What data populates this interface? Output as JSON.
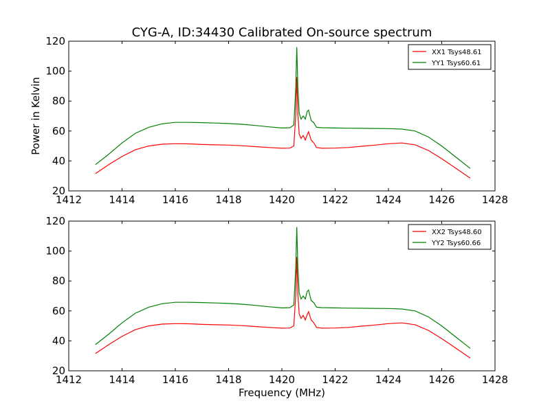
{
  "page_title": "CYG-A, ID:34430 Calibrated On-source spectrum",
  "xlabel": "Frequency (MHz)",
  "ylabel": "Power in Kelvin",
  "colors": {
    "XX": "#ff0000",
    "YY": "#008000",
    "axis": "#000000",
    "background": "#ffffff"
  },
  "chart_data": [
    {
      "type": "line",
      "title": "CYG-A, ID:34430 Calibrated On-source spectrum",
      "xlabel": "",
      "ylabel": "Power in Kelvin",
      "xlim": [
        1412,
        1428
      ],
      "ylim": [
        20,
        120
      ],
      "xticks": [
        1412,
        1414,
        1416,
        1418,
        1420,
        1422,
        1424,
        1426,
        1428
      ],
      "yticks": [
        20,
        40,
        60,
        80,
        100,
        120
      ],
      "grid": false,
      "legend_position": "top-right",
      "series": [
        {
          "name": "XX1 Tsys48.61",
          "color": "#ff0000",
          "x": [
            1413.0,
            1413.5,
            1414.0,
            1414.5,
            1415.0,
            1415.5,
            1416.0,
            1416.5,
            1417.0,
            1417.5,
            1418.0,
            1418.5,
            1419.0,
            1419.5,
            1420.0,
            1420.3,
            1420.45,
            1420.52,
            1420.56,
            1420.6,
            1420.65,
            1420.72,
            1420.8,
            1420.88,
            1420.95,
            1421.0,
            1421.1,
            1421.2,
            1421.3,
            1421.5,
            1422.0,
            1422.5,
            1423.0,
            1423.5,
            1424.0,
            1424.5,
            1425.0,
            1425.5,
            1426.0,
            1426.5,
            1427.07
          ],
          "values": [
            31.5,
            37.5,
            43.0,
            47.5,
            50.0,
            51.2,
            51.5,
            51.4,
            51.0,
            50.8,
            50.6,
            50.2,
            49.6,
            49.0,
            48.5,
            48.6,
            50.0,
            70.0,
            96.0,
            72.0,
            58.0,
            55.0,
            57.0,
            54.0,
            57.5,
            59.5,
            54.0,
            52.0,
            49.0,
            48.5,
            48.6,
            49.0,
            49.8,
            50.6,
            51.5,
            52.0,
            50.8,
            47.0,
            41.5,
            35.5,
            28.5
          ]
        },
        {
          "name": "YY1 Tsys60.61",
          "color": "#008000",
          "x": [
            1413.0,
            1413.5,
            1414.0,
            1414.5,
            1415.0,
            1415.5,
            1416.0,
            1416.5,
            1417.0,
            1417.5,
            1418.0,
            1418.5,
            1419.0,
            1419.5,
            1420.0,
            1420.3,
            1420.45,
            1420.52,
            1420.56,
            1420.6,
            1420.65,
            1420.72,
            1420.8,
            1420.88,
            1420.95,
            1421.0,
            1421.1,
            1421.2,
            1421.3,
            1421.5,
            1422.0,
            1422.5,
            1423.0,
            1423.5,
            1424.0,
            1424.5,
            1425.0,
            1425.5,
            1426.0,
            1426.5,
            1427.07
          ],
          "values": [
            37.5,
            44.5,
            52.0,
            58.5,
            62.5,
            64.8,
            65.8,
            65.8,
            65.6,
            65.3,
            65.0,
            64.5,
            63.7,
            62.8,
            62.0,
            62.2,
            64.0,
            88.0,
            116.0,
            90.0,
            72.0,
            68.0,
            70.0,
            68.0,
            73.0,
            74.0,
            67.0,
            65.5,
            62.5,
            62.2,
            62.0,
            61.9,
            61.8,
            61.7,
            61.6,
            61.3,
            60.0,
            56.0,
            50.0,
            43.0,
            35.0
          ]
        }
      ]
    },
    {
      "type": "line",
      "title": "",
      "xlabel": "Frequency (MHz)",
      "ylabel": "",
      "xlim": [
        1412,
        1428
      ],
      "ylim": [
        20,
        120
      ],
      "xticks": [
        1412,
        1414,
        1416,
        1418,
        1420,
        1422,
        1424,
        1426,
        1428
      ],
      "yticks": [
        20,
        40,
        60,
        80,
        100,
        120
      ],
      "grid": false,
      "legend_position": "top-right",
      "series": [
        {
          "name": "XX2 Tsys48.60",
          "color": "#ff0000",
          "x": [
            1413.0,
            1413.5,
            1414.0,
            1414.5,
            1415.0,
            1415.5,
            1416.0,
            1416.5,
            1417.0,
            1417.5,
            1418.0,
            1418.5,
            1419.0,
            1419.5,
            1420.0,
            1420.3,
            1420.45,
            1420.52,
            1420.56,
            1420.6,
            1420.65,
            1420.72,
            1420.8,
            1420.88,
            1420.95,
            1421.0,
            1421.1,
            1421.2,
            1421.3,
            1421.5,
            1422.0,
            1422.5,
            1423.0,
            1423.5,
            1424.0,
            1424.5,
            1425.0,
            1425.5,
            1426.0,
            1426.5,
            1427.07
          ],
          "values": [
            31.5,
            37.5,
            43.0,
            47.5,
            50.0,
            51.2,
            51.5,
            51.4,
            51.0,
            50.8,
            50.6,
            50.2,
            49.6,
            49.0,
            48.5,
            48.6,
            50.0,
            70.0,
            96.0,
            72.0,
            58.0,
            55.0,
            57.0,
            54.0,
            57.5,
            59.5,
            54.0,
            52.0,
            49.0,
            48.5,
            48.6,
            49.0,
            49.8,
            50.6,
            51.5,
            52.0,
            50.8,
            47.0,
            41.5,
            35.5,
            28.5
          ]
        },
        {
          "name": "YY2 Tsys60.66",
          "color": "#008000",
          "x": [
            1413.0,
            1413.5,
            1414.0,
            1414.5,
            1415.0,
            1415.5,
            1416.0,
            1416.5,
            1417.0,
            1417.5,
            1418.0,
            1418.5,
            1419.0,
            1419.5,
            1420.0,
            1420.3,
            1420.45,
            1420.52,
            1420.56,
            1420.6,
            1420.65,
            1420.72,
            1420.8,
            1420.88,
            1420.95,
            1421.0,
            1421.1,
            1421.2,
            1421.3,
            1421.5,
            1422.0,
            1422.5,
            1423.0,
            1423.5,
            1424.0,
            1424.5,
            1425.0,
            1425.5,
            1426.0,
            1426.5,
            1427.07
          ],
          "values": [
            37.5,
            44.5,
            52.0,
            58.5,
            62.5,
            64.8,
            65.8,
            65.8,
            65.6,
            65.3,
            65.0,
            64.5,
            63.7,
            62.8,
            62.0,
            62.2,
            64.0,
            88.0,
            116.0,
            90.0,
            72.0,
            68.0,
            70.0,
            68.0,
            73.0,
            74.0,
            67.0,
            65.5,
            62.5,
            62.2,
            62.0,
            61.9,
            61.8,
            61.7,
            61.6,
            61.3,
            60.0,
            56.0,
            50.0,
            43.0,
            35.0
          ]
        }
      ]
    }
  ]
}
